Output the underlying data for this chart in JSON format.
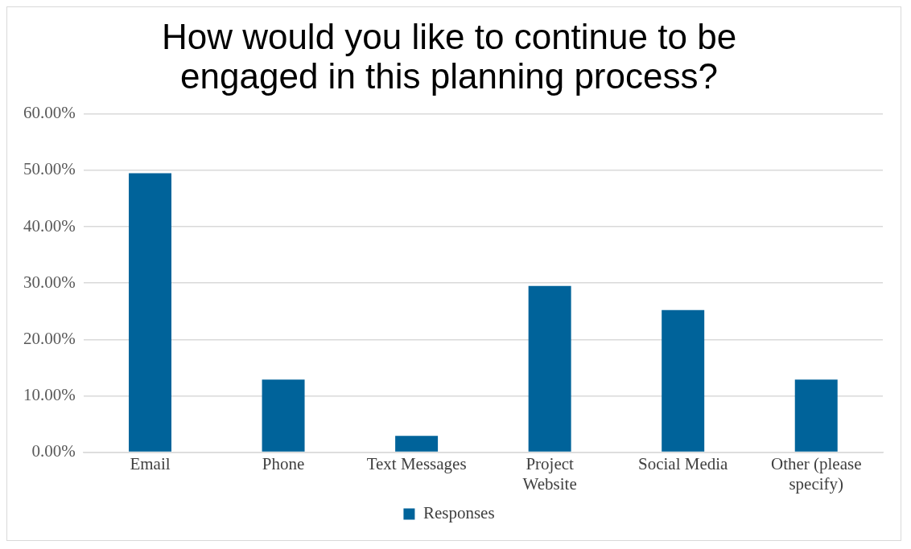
{
  "chart_data": {
    "type": "bar",
    "title": "How would you like to continue to be engaged in this planning process?",
    "categories": [
      "Email",
      "Phone",
      "Text Messages",
      "Project Website",
      "Social Media",
      "Other (please specify)"
    ],
    "series": [
      {
        "name": "Responses",
        "color": "#00639a",
        "values": [
          49.5,
          12.9,
          2.9,
          29.5,
          25.2,
          12.9
        ]
      }
    ],
    "ylim": [
      0,
      60
    ],
    "yticks": [
      {
        "value": 0,
        "label": "0.00%"
      },
      {
        "value": 10,
        "label": "10.00%"
      },
      {
        "value": 20,
        "label": "20.00%"
      },
      {
        "value": 30,
        "label": "30.00%"
      },
      {
        "value": 40,
        "label": "40.00%"
      },
      {
        "value": 50,
        "label": "50.00%"
      },
      {
        "value": 60,
        "label": "60.00%"
      }
    ],
    "grid": "y",
    "legend": "bottom"
  }
}
